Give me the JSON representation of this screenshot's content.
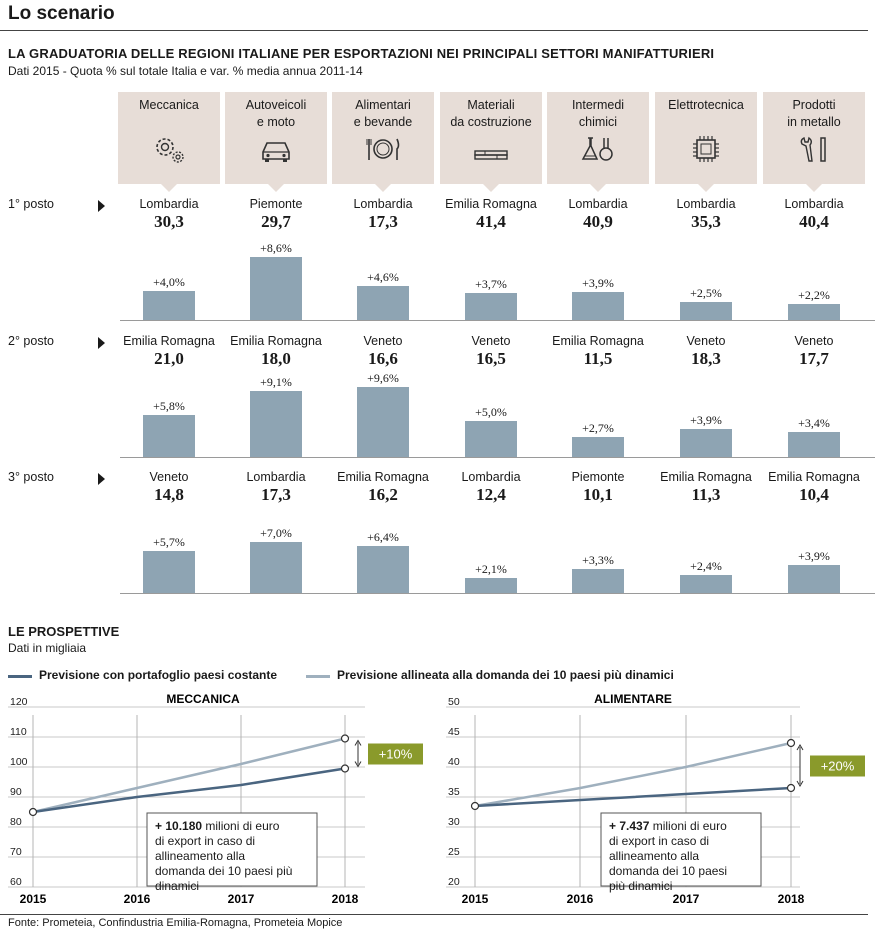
{
  "header": {
    "title": "Lo scenario"
  },
  "ranking": {
    "title": "LA GRADUATORIA DELLE REGIONI ITALIANE PER ESPORTAZIONI NEI PRINCIPALI SETTORI MANIFATTURIERI",
    "subtitle": "Dati 2015 - Quota % sul totale Italia e var. % media annua 2011-14",
    "sectors": [
      {
        "line1": "Meccanica",
        "line2": "",
        "icon": "gears-icon"
      },
      {
        "line1": "Autoveicoli",
        "line2": "e moto",
        "icon": "car-icon"
      },
      {
        "line1": "Alimentari",
        "line2": "e bevande",
        "icon": "plate-cutlery-icon"
      },
      {
        "line1": "Materiali",
        "line2": "da costruzione",
        "icon": "bricks-icon"
      },
      {
        "line1": "Intermedi",
        "line2": "chimici",
        "icon": "flask-icon"
      },
      {
        "line1": "Elettrotecnica",
        "line2": "",
        "icon": "chip-icon"
      },
      {
        "line1": "Prodotti",
        "line2": "in metallo",
        "icon": "wrench-icon"
      }
    ],
    "rank_labels": [
      "1° posto",
      "2° posto",
      "3° posto"
    ]
  },
  "chart_data": [
    {
      "type": "bar",
      "title": "LA GRADUATORIA DELLE REGIONI ITALIANE PER ESPORTAZIONI NEI PRINCIPALI SETTORI MANIFATTURIERI",
      "categories": [
        "Meccanica",
        "Autoveicoli e moto",
        "Alimentari e bevande",
        "Materiali da costruzione",
        "Intermedi chimici",
        "Elettrotecnica",
        "Prodotti in metallo"
      ],
      "ranks": [
        {
          "rank": "1° posto",
          "regions": [
            "Lombardia",
            "Piemonte",
            "Lombardia",
            "Emilia Romagna",
            "Lombardia",
            "Lombardia",
            "Lombardia"
          ],
          "share": [
            "30,3",
            "29,7",
            "17,3",
            "41,4",
            "40,9",
            "35,3",
            "40,4"
          ],
          "growth": [
            4.0,
            8.6,
            4.6,
            3.7,
            3.9,
            2.5,
            2.2
          ],
          "growth_labels": [
            "+4,0%",
            "+8,6%",
            "+4,6%",
            "+3,7%",
            "+3,9%",
            "+2,5%",
            "+2,2%"
          ]
        },
        {
          "rank": "2° posto",
          "regions": [
            "Emilia Romagna",
            "Emilia Romagna",
            "Veneto",
            "Veneto",
            "Emilia Romagna",
            "Veneto",
            "Veneto"
          ],
          "share": [
            "21,0",
            "18,0",
            "16,6",
            "16,5",
            "11,5",
            "18,3",
            "17,7"
          ],
          "growth": [
            5.8,
            9.1,
            9.6,
            5.0,
            2.7,
            3.9,
            3.4
          ],
          "growth_labels": [
            "+5,8%",
            "+9,1%",
            "+9,6%",
            "+5,0%",
            "+2,7%",
            "+3,9%",
            "+3,4%"
          ]
        },
        {
          "rank": "3° posto",
          "regions": [
            "Veneto",
            "Lombardia",
            "Emilia Romagna",
            "Lombardia",
            "Piemonte",
            "Emilia Romagna",
            "Emilia Romagna"
          ],
          "share": [
            "14,8",
            "17,3",
            "16,2",
            "12,4",
            "10,1",
            "11,3",
            "10,4"
          ],
          "growth": [
            5.7,
            7.0,
            6.4,
            2.1,
            3.3,
            2.4,
            3.9
          ],
          "growth_labels": [
            "+5,7%",
            "+7,0%",
            "+6,4%",
            "+2,1%",
            "+3,3%",
            "+2,4%",
            "+3,9%"
          ]
        }
      ]
    },
    {
      "type": "line",
      "title": "MECCANICA",
      "x": [
        2015,
        2016,
        2017,
        2018
      ],
      "xtick_labels": [
        "2015",
        "2016",
        "2017",
        "2018"
      ],
      "ylim": [
        60,
        120
      ],
      "ytick_labels": [
        "60",
        "70",
        "80",
        "90",
        "100",
        "110",
        "120"
      ],
      "series": [
        {
          "name": "Previsione con portafoglio paesi costante",
          "values": [
            85,
            90,
            94,
            99.5
          ]
        },
        {
          "name": "Previsione allineata alla domanda dei 10 paesi più dinamici",
          "values": [
            85,
            93,
            101,
            109.5
          ]
        }
      ],
      "badge": "+10%",
      "note_bold": "+ 10.180",
      "note_text": "milioni di euro di export in caso di allineamento alla domanda dei 10 paesi più dinamici"
    },
    {
      "type": "line",
      "title": "ALIMENTARE",
      "x": [
        2015,
        2016,
        2017,
        2018
      ],
      "xtick_labels": [
        "2015",
        "2016",
        "2017",
        "2018"
      ],
      "ylim": [
        20,
        50
      ],
      "ytick_labels": [
        "20",
        "25",
        "30",
        "35",
        "40",
        "45",
        "50"
      ],
      "series": [
        {
          "name": "Previsione con portafoglio paesi costante",
          "values": [
            33.5,
            34.5,
            35.5,
            36.5
          ]
        },
        {
          "name": "Previsione allineata alla domanda dei 10 paesi più dinamici",
          "values": [
            33.5,
            36.5,
            40,
            44
          ]
        }
      ],
      "badge": "+20%",
      "note_bold": "+ 7.437",
      "note_text": "milioni di euro di export in caso di allineamento alla domanda dei 10 paesi più dinamici"
    }
  ],
  "prospects": {
    "title": "LE PROSPETTIVE",
    "subtitle": "Dati in migliaia",
    "legend": [
      {
        "label": "Previsione con portafoglio paesi costante",
        "color": "#4a6580"
      },
      {
        "label": "Previsione allineata alla domanda dei 10 paesi più dinamici",
        "color": "#9fb0be"
      }
    ]
  },
  "colors": {
    "bar": "#8ea4b3",
    "sector_bg": "#e7ddd7",
    "badge": "#8a9a2b",
    "dark_line": "#4a6580",
    "light_line": "#9fb0be"
  },
  "footer": {
    "source": "Fonte: Prometeia, Confindustria Emilia-Romagna, Prometeia Mopice"
  }
}
